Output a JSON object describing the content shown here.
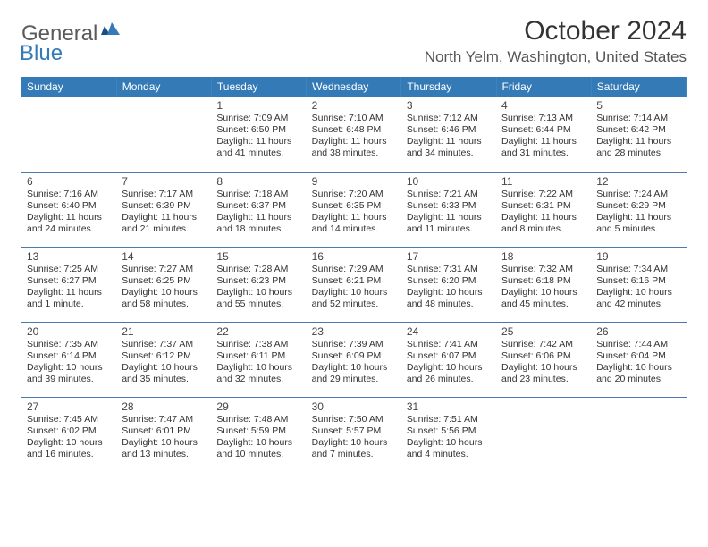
{
  "brand": {
    "text_general": "General",
    "text_blue": "Blue",
    "logo_color": "#347ab7"
  },
  "header": {
    "month_title": "October 2024",
    "location": "North Yelm, Washington, United States"
  },
  "colors": {
    "header_bg": "#347ab7",
    "header_text": "#ffffff",
    "cell_border": "#4a7aa8",
    "text": "#333333",
    "background": "#ffffff"
  },
  "typography": {
    "title_fontsize": 30,
    "location_fontsize": 17,
    "dayheader_fontsize": 12,
    "daynum_fontsize": 12,
    "info_fontsize": 10.5
  },
  "day_headers": [
    "Sunday",
    "Monday",
    "Tuesday",
    "Wednesday",
    "Thursday",
    "Friday",
    "Saturday"
  ],
  "weeks": [
    [
      null,
      null,
      {
        "n": "1",
        "sunrise": "Sunrise: 7:09 AM",
        "sunset": "Sunset: 6:50 PM",
        "daylight": "Daylight: 11 hours and 41 minutes."
      },
      {
        "n": "2",
        "sunrise": "Sunrise: 7:10 AM",
        "sunset": "Sunset: 6:48 PM",
        "daylight": "Daylight: 11 hours and 38 minutes."
      },
      {
        "n": "3",
        "sunrise": "Sunrise: 7:12 AM",
        "sunset": "Sunset: 6:46 PM",
        "daylight": "Daylight: 11 hours and 34 minutes."
      },
      {
        "n": "4",
        "sunrise": "Sunrise: 7:13 AM",
        "sunset": "Sunset: 6:44 PM",
        "daylight": "Daylight: 11 hours and 31 minutes."
      },
      {
        "n": "5",
        "sunrise": "Sunrise: 7:14 AM",
        "sunset": "Sunset: 6:42 PM",
        "daylight": "Daylight: 11 hours and 28 minutes."
      }
    ],
    [
      {
        "n": "6",
        "sunrise": "Sunrise: 7:16 AM",
        "sunset": "Sunset: 6:40 PM",
        "daylight": "Daylight: 11 hours and 24 minutes."
      },
      {
        "n": "7",
        "sunrise": "Sunrise: 7:17 AM",
        "sunset": "Sunset: 6:39 PM",
        "daylight": "Daylight: 11 hours and 21 minutes."
      },
      {
        "n": "8",
        "sunrise": "Sunrise: 7:18 AM",
        "sunset": "Sunset: 6:37 PM",
        "daylight": "Daylight: 11 hours and 18 minutes."
      },
      {
        "n": "9",
        "sunrise": "Sunrise: 7:20 AM",
        "sunset": "Sunset: 6:35 PM",
        "daylight": "Daylight: 11 hours and 14 minutes."
      },
      {
        "n": "10",
        "sunrise": "Sunrise: 7:21 AM",
        "sunset": "Sunset: 6:33 PM",
        "daylight": "Daylight: 11 hours and 11 minutes."
      },
      {
        "n": "11",
        "sunrise": "Sunrise: 7:22 AM",
        "sunset": "Sunset: 6:31 PM",
        "daylight": "Daylight: 11 hours and 8 minutes."
      },
      {
        "n": "12",
        "sunrise": "Sunrise: 7:24 AM",
        "sunset": "Sunset: 6:29 PM",
        "daylight": "Daylight: 11 hours and 5 minutes."
      }
    ],
    [
      {
        "n": "13",
        "sunrise": "Sunrise: 7:25 AM",
        "sunset": "Sunset: 6:27 PM",
        "daylight": "Daylight: 11 hours and 1 minute."
      },
      {
        "n": "14",
        "sunrise": "Sunrise: 7:27 AM",
        "sunset": "Sunset: 6:25 PM",
        "daylight": "Daylight: 10 hours and 58 minutes."
      },
      {
        "n": "15",
        "sunrise": "Sunrise: 7:28 AM",
        "sunset": "Sunset: 6:23 PM",
        "daylight": "Daylight: 10 hours and 55 minutes."
      },
      {
        "n": "16",
        "sunrise": "Sunrise: 7:29 AM",
        "sunset": "Sunset: 6:21 PM",
        "daylight": "Daylight: 10 hours and 52 minutes."
      },
      {
        "n": "17",
        "sunrise": "Sunrise: 7:31 AM",
        "sunset": "Sunset: 6:20 PM",
        "daylight": "Daylight: 10 hours and 48 minutes."
      },
      {
        "n": "18",
        "sunrise": "Sunrise: 7:32 AM",
        "sunset": "Sunset: 6:18 PM",
        "daylight": "Daylight: 10 hours and 45 minutes."
      },
      {
        "n": "19",
        "sunrise": "Sunrise: 7:34 AM",
        "sunset": "Sunset: 6:16 PM",
        "daylight": "Daylight: 10 hours and 42 minutes."
      }
    ],
    [
      {
        "n": "20",
        "sunrise": "Sunrise: 7:35 AM",
        "sunset": "Sunset: 6:14 PM",
        "daylight": "Daylight: 10 hours and 39 minutes."
      },
      {
        "n": "21",
        "sunrise": "Sunrise: 7:37 AM",
        "sunset": "Sunset: 6:12 PM",
        "daylight": "Daylight: 10 hours and 35 minutes."
      },
      {
        "n": "22",
        "sunrise": "Sunrise: 7:38 AM",
        "sunset": "Sunset: 6:11 PM",
        "daylight": "Daylight: 10 hours and 32 minutes."
      },
      {
        "n": "23",
        "sunrise": "Sunrise: 7:39 AM",
        "sunset": "Sunset: 6:09 PM",
        "daylight": "Daylight: 10 hours and 29 minutes."
      },
      {
        "n": "24",
        "sunrise": "Sunrise: 7:41 AM",
        "sunset": "Sunset: 6:07 PM",
        "daylight": "Daylight: 10 hours and 26 minutes."
      },
      {
        "n": "25",
        "sunrise": "Sunrise: 7:42 AM",
        "sunset": "Sunset: 6:06 PM",
        "daylight": "Daylight: 10 hours and 23 minutes."
      },
      {
        "n": "26",
        "sunrise": "Sunrise: 7:44 AM",
        "sunset": "Sunset: 6:04 PM",
        "daylight": "Daylight: 10 hours and 20 minutes."
      }
    ],
    [
      {
        "n": "27",
        "sunrise": "Sunrise: 7:45 AM",
        "sunset": "Sunset: 6:02 PM",
        "daylight": "Daylight: 10 hours and 16 minutes."
      },
      {
        "n": "28",
        "sunrise": "Sunrise: 7:47 AM",
        "sunset": "Sunset: 6:01 PM",
        "daylight": "Daylight: 10 hours and 13 minutes."
      },
      {
        "n": "29",
        "sunrise": "Sunrise: 7:48 AM",
        "sunset": "Sunset: 5:59 PM",
        "daylight": "Daylight: 10 hours and 10 minutes."
      },
      {
        "n": "30",
        "sunrise": "Sunrise: 7:50 AM",
        "sunset": "Sunset: 5:57 PM",
        "daylight": "Daylight: 10 hours and 7 minutes."
      },
      {
        "n": "31",
        "sunrise": "Sunrise: 7:51 AM",
        "sunset": "Sunset: 5:56 PM",
        "daylight": "Daylight: 10 hours and 4 minutes."
      },
      null,
      null
    ]
  ]
}
